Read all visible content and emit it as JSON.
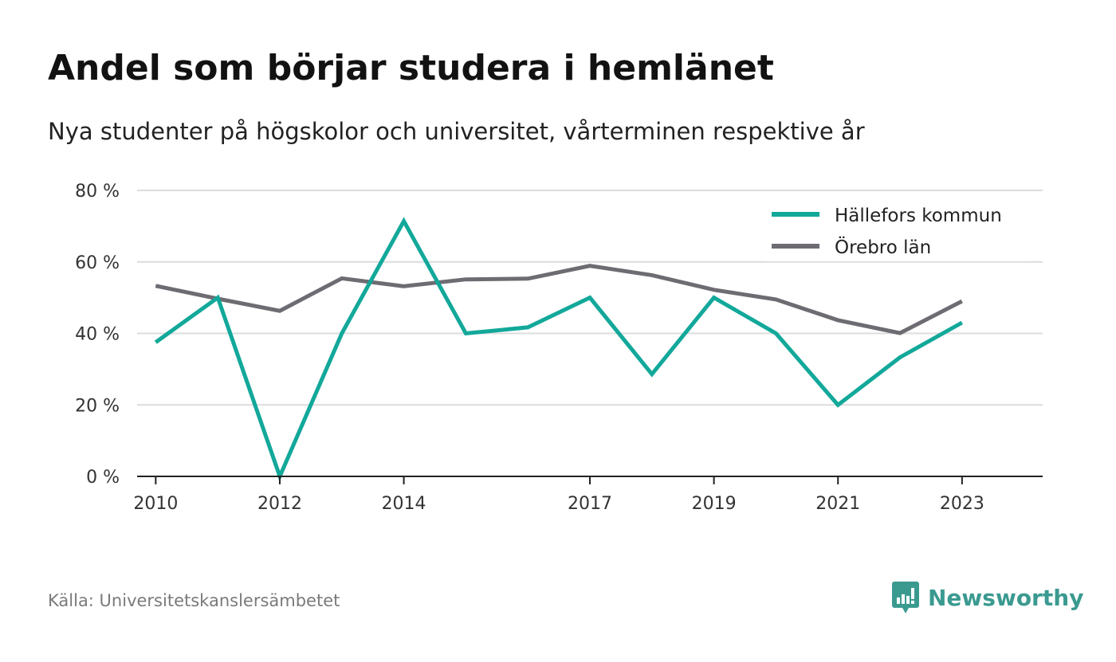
{
  "header": {
    "title": "Andel som börjar studera i hemlänet",
    "subtitle": "Nya studenter på högskolor och universitet, vårterminen respektive år"
  },
  "footer": {
    "source": "Källa: Universitetskanslersämbetet",
    "brand_name": "Newsworthy",
    "brand_icon": "newsworthy-logo-icon",
    "brand_color": "#3b9a90"
  },
  "chart_data": {
    "type": "line",
    "title": "Andel som börjar studera i hemlänet",
    "subtitle": "Nya studenter på högskolor och universitet, vårterminen respektive år",
    "x": [
      2010,
      2011,
      2012,
      2013,
      2014,
      2015,
      2016,
      2017,
      2018,
      2019,
      2020,
      2021,
      2022,
      2023
    ],
    "x_tick_values": [
      2010,
      2012,
      2014,
      2017,
      2019,
      2021,
      2023
    ],
    "x_tick_labels": [
      "2010",
      "2012",
      "2014",
      "2017",
      "2019",
      "2021",
      "2023"
    ],
    "y_tick_values": [
      0,
      20,
      40,
      60,
      80
    ],
    "y_tick_labels": [
      "0 %",
      "20 %",
      "40 %",
      "60 %",
      "80 %"
    ],
    "xlim": [
      2009.7,
      2024.3
    ],
    "ylim": [
      0,
      80
    ],
    "grid": "horizontal",
    "legend_position": "top-right",
    "series": [
      {
        "name": "Hällefors kommun",
        "color": "#12a89a",
        "values": [
          37.5,
          50,
          0,
          40,
          71.4,
          40,
          41.7,
          50,
          28.6,
          50,
          40,
          20,
          33.3,
          43
        ]
      },
      {
        "name": "Örebro län",
        "color": "#6e6c72",
        "values": [
          53.3,
          49.7,
          46.3,
          55.4,
          53.2,
          55.1,
          55.3,
          58.9,
          56.3,
          52.2,
          49.5,
          43.7,
          40.1,
          49
        ]
      }
    ]
  }
}
